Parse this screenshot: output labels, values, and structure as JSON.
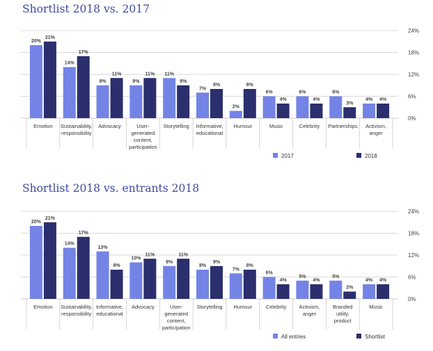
{
  "colors": {
    "light": "#7384e6",
    "dark": "#2b2f6e",
    "grid": "#cccccc",
    "sep": "#bbbbbb",
    "title": "#3d4aa0"
  },
  "chart_data": [
    {
      "type": "bar",
      "title": "Shortlist 2018 vs. 2017",
      "categories": [
        [
          "Emotion"
        ],
        [
          "Sustainability,",
          "responsibility"
        ],
        [
          "Advocacy"
        ],
        [
          "User-",
          "generated",
          "content,",
          "participation"
        ],
        [
          "Storytelling"
        ],
        [
          "Informative,",
          "educational"
        ],
        [
          "Humour"
        ],
        [
          "Music"
        ],
        [
          "Celebrity"
        ],
        [
          "Partnerships"
        ],
        [
          "Activism,",
          "anger"
        ]
      ],
      "series": [
        {
          "name": "2017",
          "values": [
            20,
            14,
            9,
            9,
            11,
            7,
            2,
            6,
            6,
            6,
            4
          ]
        },
        {
          "name": "2018",
          "values": [
            21,
            17,
            11,
            11,
            9,
            8,
            8,
            4,
            4,
            3,
            4
          ]
        }
      ],
      "ylim": [
        0,
        24
      ],
      "yticks": [
        "0%",
        "6%",
        "12%",
        "18%",
        "24%"
      ],
      "ytick_values": [
        0,
        6,
        12,
        18,
        24
      ],
      "grid": true,
      "legend_position": "bottom-right",
      "axis_side": "right"
    },
    {
      "type": "bar",
      "title": "Shortlist 2018 vs. entrants 2018",
      "categories": [
        [
          "Emotion"
        ],
        [
          "Sustainability,",
          "responsibility"
        ],
        [
          "Informative,",
          "educational"
        ],
        [
          "Advocacy"
        ],
        [
          "User-",
          "generated",
          "content,",
          "participation"
        ],
        [
          "Storytelling"
        ],
        [
          "Humour"
        ],
        [
          "Celebrity"
        ],
        [
          "Activism,",
          "anger"
        ],
        [
          "Branded",
          "utility,",
          "product"
        ],
        [
          "Music"
        ]
      ],
      "series": [
        {
          "name": "All entries",
          "values": [
            20,
            14,
            13,
            10,
            9,
            8,
            7,
            6,
            5,
            5,
            4
          ]
        },
        {
          "name": "Shortlist",
          "values": [
            21,
            17,
            8,
            11,
            11,
            9,
            8,
            4,
            4,
            2,
            4
          ]
        }
      ],
      "ylim": [
        0,
        24
      ],
      "yticks": [
        "0%",
        "6%",
        "12%",
        "18%",
        "24%"
      ],
      "ytick_values": [
        0,
        6,
        12,
        18,
        24
      ],
      "grid": true,
      "legend_position": "bottom-right",
      "axis_side": "right"
    }
  ]
}
